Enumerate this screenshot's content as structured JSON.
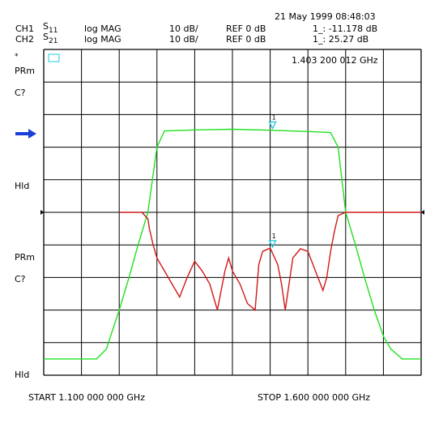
{
  "header": {
    "datetime": "21 May 1999  08:48:03",
    "ch1": {
      "label": "CH1",
      "param": "S",
      "param_sub": "11",
      "format": "log MAG",
      "scale": "10 dB/",
      "ref": "REF 0  dB",
      "marker": "1_: -11.178  dB"
    },
    "ch2": {
      "label": "CH2",
      "param": "S",
      "param_sub": "21",
      "format": "log MAG",
      "scale": "10 dB/",
      "ref": "REF 0  dB",
      "marker": "1_: 25.27  dB"
    }
  },
  "marker_freq": "1.403 200 012  GHz",
  "left_labels": [
    "*",
    "PRm",
    "C?",
    "Hld",
    "PRm",
    "C?",
    "Hld"
  ],
  "start_label": "START  1.100 000 000  GHz",
  "stop_label": "STOP  1.600 000 000  GHz",
  "marker_number": "1",
  "colors": {
    "s21": "#20e020",
    "s11": "#d01818",
    "marker": "#20c8d8",
    "arrow": "#1a3fd8",
    "grid": "#000000"
  },
  "chart_data": {
    "type": "line",
    "x_unit": "GHz",
    "xlim": [
      1.1,
      1.6
    ],
    "y_unit": "dB",
    "divisions": 10,
    "series": [
      {
        "trace": "S21",
        "color": "#20e020",
        "y_scale_db_per_div": 10,
        "y_ref_db": 0,
        "x": [
          1.1,
          1.15,
          1.17,
          1.183,
          1.19,
          1.2,
          1.213,
          1.225,
          1.238,
          1.25,
          1.26,
          1.3,
          1.35,
          1.4,
          1.45,
          1.48,
          1.49,
          1.5,
          1.513,
          1.525,
          1.538,
          1.55,
          1.56,
          1.575,
          1.6
        ],
        "y": [
          -45,
          -45,
          -45,
          -42,
          -37,
          -30,
          -20,
          -10,
          0,
          20,
          25,
          25.3,
          25.5,
          25.2,
          24.8,
          24.5,
          20,
          0,
          -10,
          -20,
          -30,
          -38,
          -42,
          -45,
          -45
        ]
      },
      {
        "trace": "S11",
        "color": "#d01818",
        "y_scale_db_per_div": 10,
        "y_ref_db": 0,
        "x": [
          1.2,
          1.23,
          1.238,
          1.24,
          1.245,
          1.25,
          1.26,
          1.27,
          1.28,
          1.29,
          1.3,
          1.31,
          1.32,
          1.325,
          1.33,
          1.34,
          1.345,
          1.35,
          1.36,
          1.37,
          1.38,
          1.385,
          1.39,
          1.4,
          1.41,
          1.415,
          1.42,
          1.43,
          1.44,
          1.45,
          1.46,
          1.47,
          1.475,
          1.48,
          1.485,
          1.49,
          1.5,
          1.6
        ],
        "y": [
          0,
          0,
          -2,
          -5,
          -10,
          -14,
          -18,
          -22,
          -26,
          -20,
          -15,
          -18,
          -22,
          -26,
          -30,
          -18,
          -14,
          -18,
          -22,
          -28,
          -30,
          -16,
          -12,
          -11,
          -16,
          -22,
          -30,
          -14,
          -11.2,
          -12,
          -18,
          -24,
          -20,
          -12,
          -6,
          -1,
          0,
          0
        ]
      }
    ],
    "marker": {
      "x": 1.4032,
      "s11_y": -11.178,
      "s21_y": 25.27
    }
  }
}
